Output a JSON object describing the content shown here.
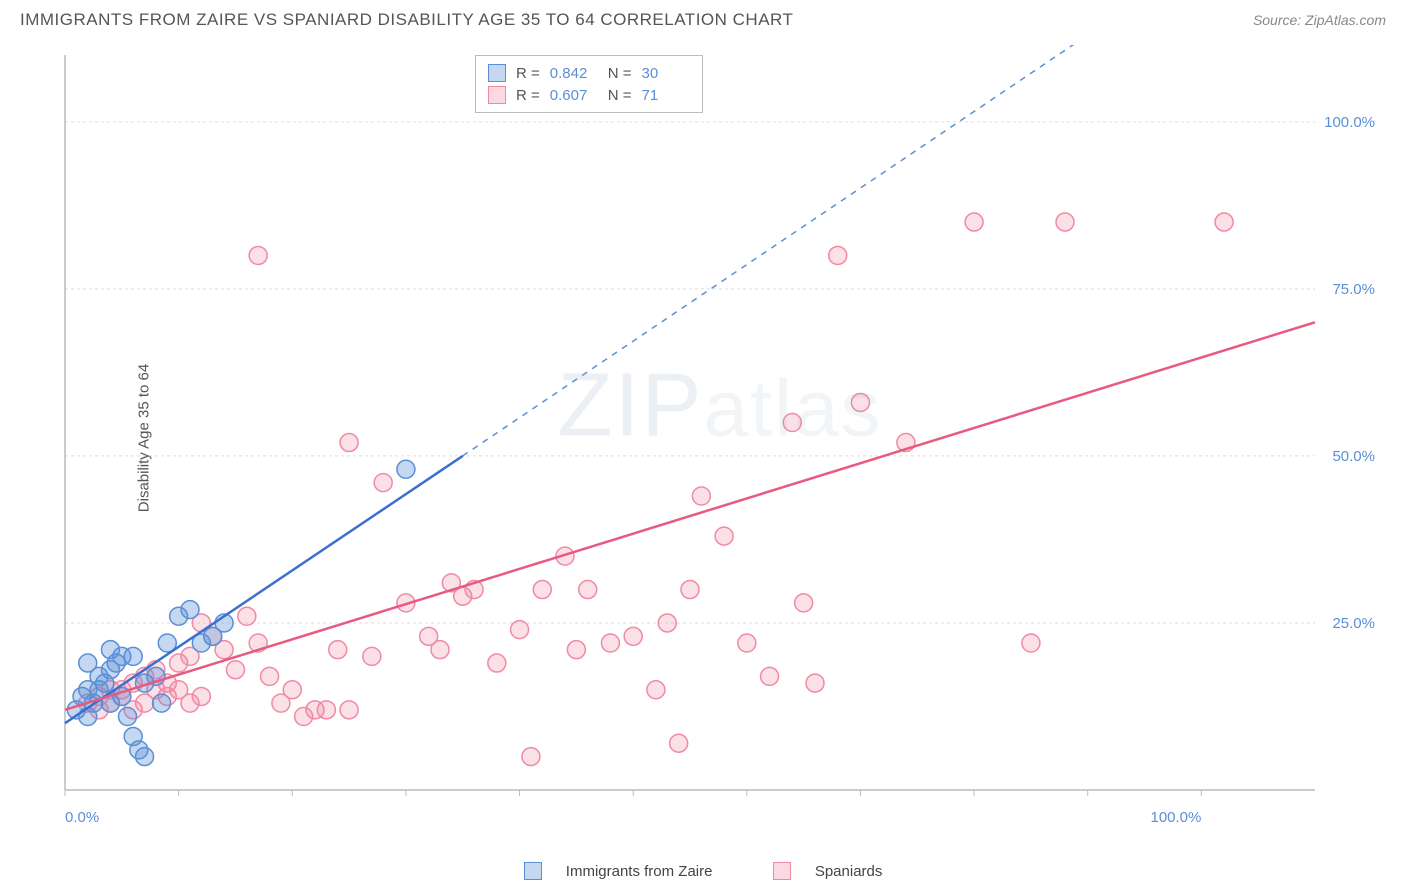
{
  "title": "IMMIGRANTS FROM ZAIRE VS SPANIARD DISABILITY AGE 35 TO 64 CORRELATION CHART",
  "source": "Source: ZipAtlas.com",
  "y_axis_label": "Disability Age 35 to 64",
  "watermark": "ZIPatlas",
  "chart": {
    "type": "scatter",
    "xlim": [
      0,
      110
    ],
    "ylim": [
      0,
      110
    ],
    "x_ticks": [
      0,
      100
    ],
    "x_tick_labels": [
      "0.0%",
      "100.0%"
    ],
    "y_ticks": [
      25,
      50,
      75,
      100
    ],
    "y_tick_labels": [
      "25.0%",
      "50.0%",
      "75.0%",
      "100.0%"
    ],
    "grid_color": "#dddddd",
    "axis_color": "#bbbbbb",
    "background_color": "#ffffff",
    "marker_radius": 9,
    "series": [
      {
        "name": "Immigrants from Zaire",
        "color_fill": "rgba(90,143,214,0.35)",
        "color_stroke": "#5a8fd6",
        "R": "0.842",
        "N": "30",
        "trend": {
          "x0": 0,
          "y0": 10,
          "x1": 35,
          "y1": 50,
          "x2": 90,
          "y2": 113,
          "dash_from_x": 35
        },
        "points": [
          [
            1,
            12
          ],
          [
            1.5,
            14
          ],
          [
            2,
            15
          ],
          [
            2,
            11
          ],
          [
            2.5,
            13
          ],
          [
            3,
            15
          ],
          [
            3,
            17
          ],
          [
            3.5,
            16
          ],
          [
            4,
            18
          ],
          [
            4,
            13
          ],
          [
            4.5,
            19
          ],
          [
            5,
            20
          ],
          [
            5,
            14
          ],
          [
            5.5,
            11
          ],
          [
            6,
            8
          ],
          [
            6.5,
            6
          ],
          [
            7,
            5
          ],
          [
            7,
            16
          ],
          [
            8,
            17
          ],
          [
            9,
            22
          ],
          [
            10,
            26
          ],
          [
            11,
            27
          ],
          [
            12,
            22
          ],
          [
            13,
            23
          ],
          [
            14,
            25
          ],
          [
            8.5,
            13
          ],
          [
            6,
            20
          ],
          [
            4,
            21
          ],
          [
            2,
            19
          ],
          [
            30,
            48
          ]
        ]
      },
      {
        "name": "Spaniards",
        "color_fill": "rgba(240,130,160,0.25)",
        "color_stroke": "#f08aa4",
        "R": "0.607",
        "N": "71",
        "trend": {
          "x0": 0,
          "y0": 12,
          "x1": 110,
          "y1": 70
        },
        "points": [
          [
            2,
            13
          ],
          [
            3,
            14
          ],
          [
            4,
            15
          ],
          [
            5,
            14
          ],
          [
            6,
            16
          ],
          [
            7,
            17
          ],
          [
            8,
            18
          ],
          [
            9,
            16
          ],
          [
            10,
            19
          ],
          [
            11,
            20
          ],
          [
            12,
            25
          ],
          [
            13,
            23
          ],
          [
            14,
            21
          ],
          [
            15,
            18
          ],
          [
            16,
            26
          ],
          [
            17,
            22
          ],
          [
            18,
            17
          ],
          [
            19,
            13
          ],
          [
            20,
            15
          ],
          [
            21,
            11
          ],
          [
            22,
            12
          ],
          [
            23,
            12
          ],
          [
            24,
            21
          ],
          [
            25,
            12
          ],
          [
            27,
            20
          ],
          [
            28,
            46
          ],
          [
            30,
            28
          ],
          [
            32,
            23
          ],
          [
            33,
            21
          ],
          [
            34,
            31
          ],
          [
            35,
            29
          ],
          [
            36,
            30
          ],
          [
            38,
            19
          ],
          [
            40,
            24
          ],
          [
            41,
            5
          ],
          [
            42,
            30
          ],
          [
            44,
            35
          ],
          [
            45,
            21
          ],
          [
            46,
            30
          ],
          [
            48,
            22
          ],
          [
            50,
            23
          ],
          [
            52,
            15
          ],
          [
            53,
            25
          ],
          [
            54,
            7
          ],
          [
            55,
            30
          ],
          [
            56,
            44
          ],
          [
            58,
            38
          ],
          [
            60,
            22
          ],
          [
            62,
            17
          ],
          [
            64,
            55
          ],
          [
            65,
            28
          ],
          [
            66,
            16
          ],
          [
            68,
            80
          ],
          [
            70,
            58
          ],
          [
            74,
            52
          ],
          [
            80,
            85
          ],
          [
            85,
            22
          ],
          [
            88,
            85
          ],
          [
            102,
            85
          ],
          [
            17,
            80
          ],
          [
            25,
            52
          ],
          [
            9,
            14
          ],
          [
            10,
            15
          ],
          [
            11,
            13
          ],
          [
            12,
            14
          ],
          [
            6,
            12
          ],
          [
            7,
            13
          ],
          [
            8,
            15
          ],
          [
            3,
            12
          ],
          [
            4,
            13
          ],
          [
            5,
            15
          ]
        ]
      }
    ]
  },
  "legend": {
    "series1_label": "Immigrants from Zaire",
    "series2_label": "Spaniards",
    "r_label": "R =",
    "n_label": "N ="
  }
}
